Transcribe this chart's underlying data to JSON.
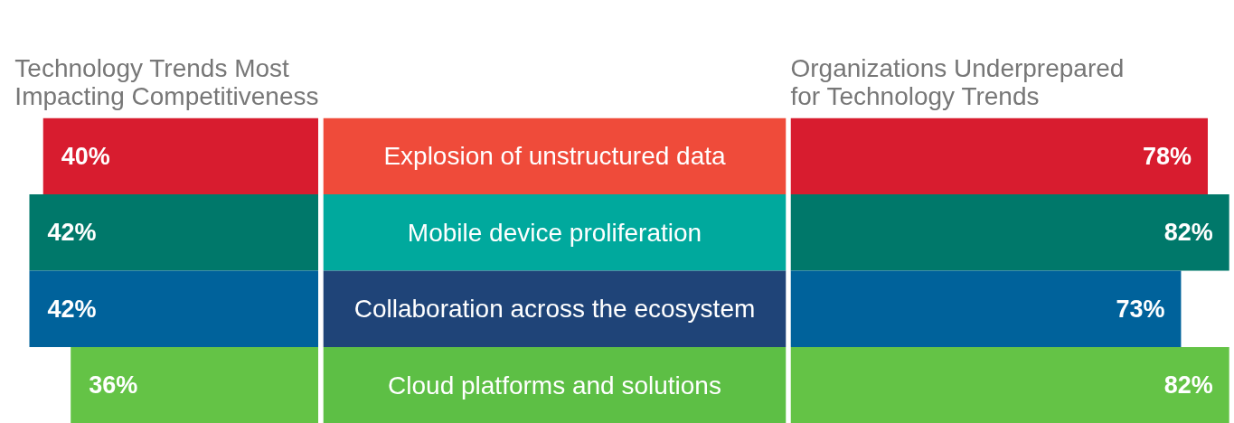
{
  "chart_data": [
    {
      "type": "bar",
      "orientation": "horizontal",
      "title": "Technology Trends Most\nImpacting Competitiveness",
      "categories": [
        "Explosion of unstructured data",
        "Mobile device proliferation",
        "Collaboration across the ecosystem",
        "Cloud platforms and solutions"
      ],
      "values": [
        40,
        42,
        42,
        36
      ],
      "colors": [
        "#d81c2f",
        "#00786a",
        "#00629b",
        "#64c346"
      ],
      "value_labels": [
        "40%",
        "42%",
        "42%",
        "36%"
      ],
      "tick_labels": "y"
    },
    {
      "type": "bar",
      "orientation": "horizontal",
      "title": "Organizations Underprepared\nfor Technology Trends",
      "categories": [
        null,
        null,
        null,
        null
      ],
      "values": [
        78,
        82,
        73,
        82
      ],
      "colors": [
        "#d81c2f",
        "#00786a",
        "#00629b",
        "#64c346"
      ],
      "value_labels": [
        "78%",
        "82%",
        "73%",
        "82%"
      ],
      "tick_labels": false
    }
  ]
}
